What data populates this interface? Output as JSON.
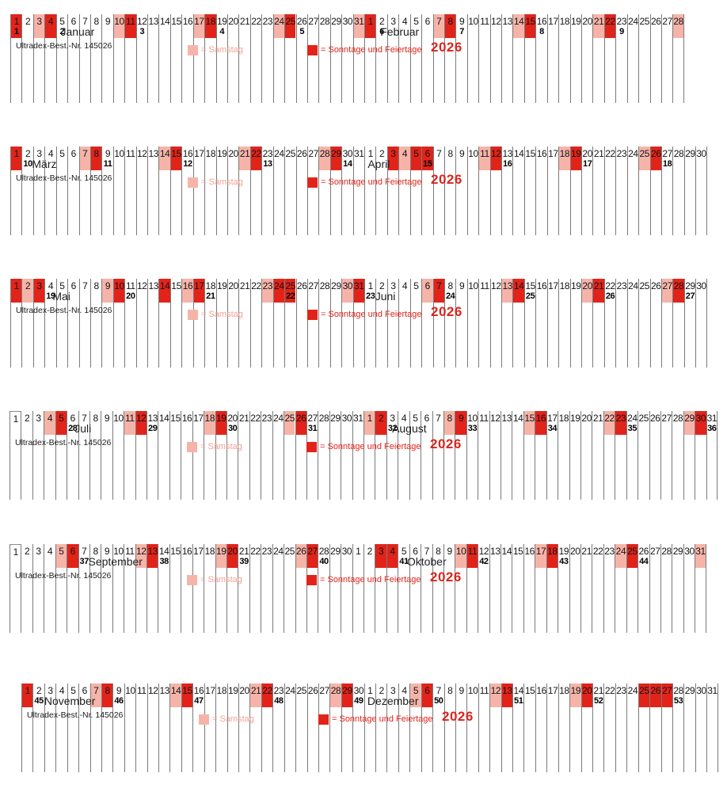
{
  "year": "2026",
  "order_note": "Ultradex-Best.-Nr. 145026",
  "legend": {
    "saturday_label": "= Samstag",
    "sunday_label": "= Sonntage und Feiertage"
  },
  "colors": {
    "holiday_red": "#e2231a",
    "saturday_pink": "#f6b4a9",
    "saturday_text": "#f2a295",
    "sunday_text": "#e2231a",
    "year_text": "#d9251c",
    "grid_line": "#7a7a7a"
  },
  "rows": [
    {
      "months": [
        {
          "name": "Januar",
          "days": 31,
          "red_days": [
            1,
            4,
            11,
            18,
            25
          ],
          "pink_days": [
            3,
            10,
            17,
            24,
            31
          ],
          "week_numbers": {
            "1": "1",
            "5": "2",
            "12": "3",
            "19": "4",
            "26": "5"
          },
          "label_col": 4.4
        },
        {
          "name": "Februar",
          "days": 28,
          "red_days": [
            1,
            8,
            15,
            22
          ],
          "pink_days": [
            7,
            14,
            21,
            28
          ],
          "week_numbers": {
            "2": "6",
            "9": "7",
            "16": "8",
            "23": "9"
          },
          "label_col": 1.4
        }
      ]
    },
    {
      "months": [
        {
          "name": "März",
          "days": 31,
          "red_days": [
            1,
            8,
            15,
            22,
            29
          ],
          "pink_days": [
            7,
            14,
            21,
            28
          ],
          "week_numbers": {
            "2": "10",
            "9": "11",
            "16": "12",
            "23": "13",
            "30": "14"
          },
          "label_col": 1.9
        },
        {
          "name": "April",
          "days": 30,
          "red_days": [
            3,
            5,
            6,
            12,
            19,
            26
          ],
          "pink_days": [
            4,
            11,
            18,
            25
          ],
          "week_numbers": {
            "6": "15",
            "13": "16",
            "20": "17",
            "27": "18"
          },
          "label_col": 0.3
        }
      ]
    },
    {
      "months": [
        {
          "name": "Mai",
          "days": 31,
          "red_days": [
            1,
            3,
            10,
            14,
            17,
            24,
            25,
            31
          ],
          "pink_days": [
            2,
            9,
            16,
            23,
            30
          ],
          "week_numbers": {
            "4": "19",
            "11": "20",
            "18": "21",
            "25": "22"
          },
          "label_col": 3.7
        },
        {
          "name": "Juni",
          "days": 30,
          "red_days": [
            7,
            14,
            21,
            28
          ],
          "pink_days": [
            6,
            13,
            20,
            27
          ],
          "week_numbers": {
            "1": "23",
            "8": "24",
            "15": "25",
            "22": "26",
            "29": "27"
          },
          "label_col": 0.95
        }
      ]
    },
    {
      "months": [
        {
          "name": "Juli",
          "days": 31,
          "red_days": [
            5,
            12,
            19,
            26
          ],
          "pink_days": [
            4,
            11,
            18,
            25
          ],
          "week_numbers": {
            "6": "28",
            "13": "29",
            "20": "30",
            "27": "31"
          },
          "label_col": 5.7
        },
        {
          "name": "August",
          "days": 31,
          "red_days": [
            2,
            9,
            16,
            23,
            30
          ],
          "pink_days": [
            1,
            8,
            15,
            22,
            29
          ],
          "week_numbers": {
            "3": "32",
            "10": "33",
            "17": "34",
            "24": "35",
            "31": "36"
          },
          "label_col": 2.5
        }
      ]
    },
    {
      "months": [
        {
          "name": "September",
          "days": 30,
          "red_days": [
            6,
            13,
            20,
            27
          ],
          "pink_days": [
            5,
            12,
            19,
            26
          ],
          "week_numbers": {
            "7": "37",
            "14": "38",
            "21": "39",
            "28": "40"
          },
          "label_col": 6.9
        },
        {
          "name": "Oktober",
          "days": 31,
          "red_days": [
            3,
            4,
            11,
            18,
            25
          ],
          "pink_days": [
            10,
            17,
            24,
            31
          ],
          "week_numbers": {
            "5": "41",
            "12": "42",
            "19": "43",
            "26": "44"
          },
          "label_col": 4.8
        }
      ]
    },
    {
      "months": [
        {
          "name": "November",
          "days": 30,
          "red_days": [
            1,
            8,
            15,
            22,
            29
          ],
          "pink_days": [
            7,
            14,
            21,
            28
          ],
          "week_numbers": {
            "2": "45",
            "9": "46",
            "16": "47",
            "23": "48",
            "30": "49"
          },
          "label_col": 2.0
        },
        {
          "name": "Dezember",
          "days": 31,
          "red_days": [
            6,
            13,
            20,
            25,
            26,
            27
          ],
          "pink_days": [
            5,
            12,
            19
          ],
          "week_numbers": {
            "7": "50",
            "14": "51",
            "21": "52",
            "28": "53"
          },
          "label_col": 0.3
        }
      ]
    }
  ]
}
